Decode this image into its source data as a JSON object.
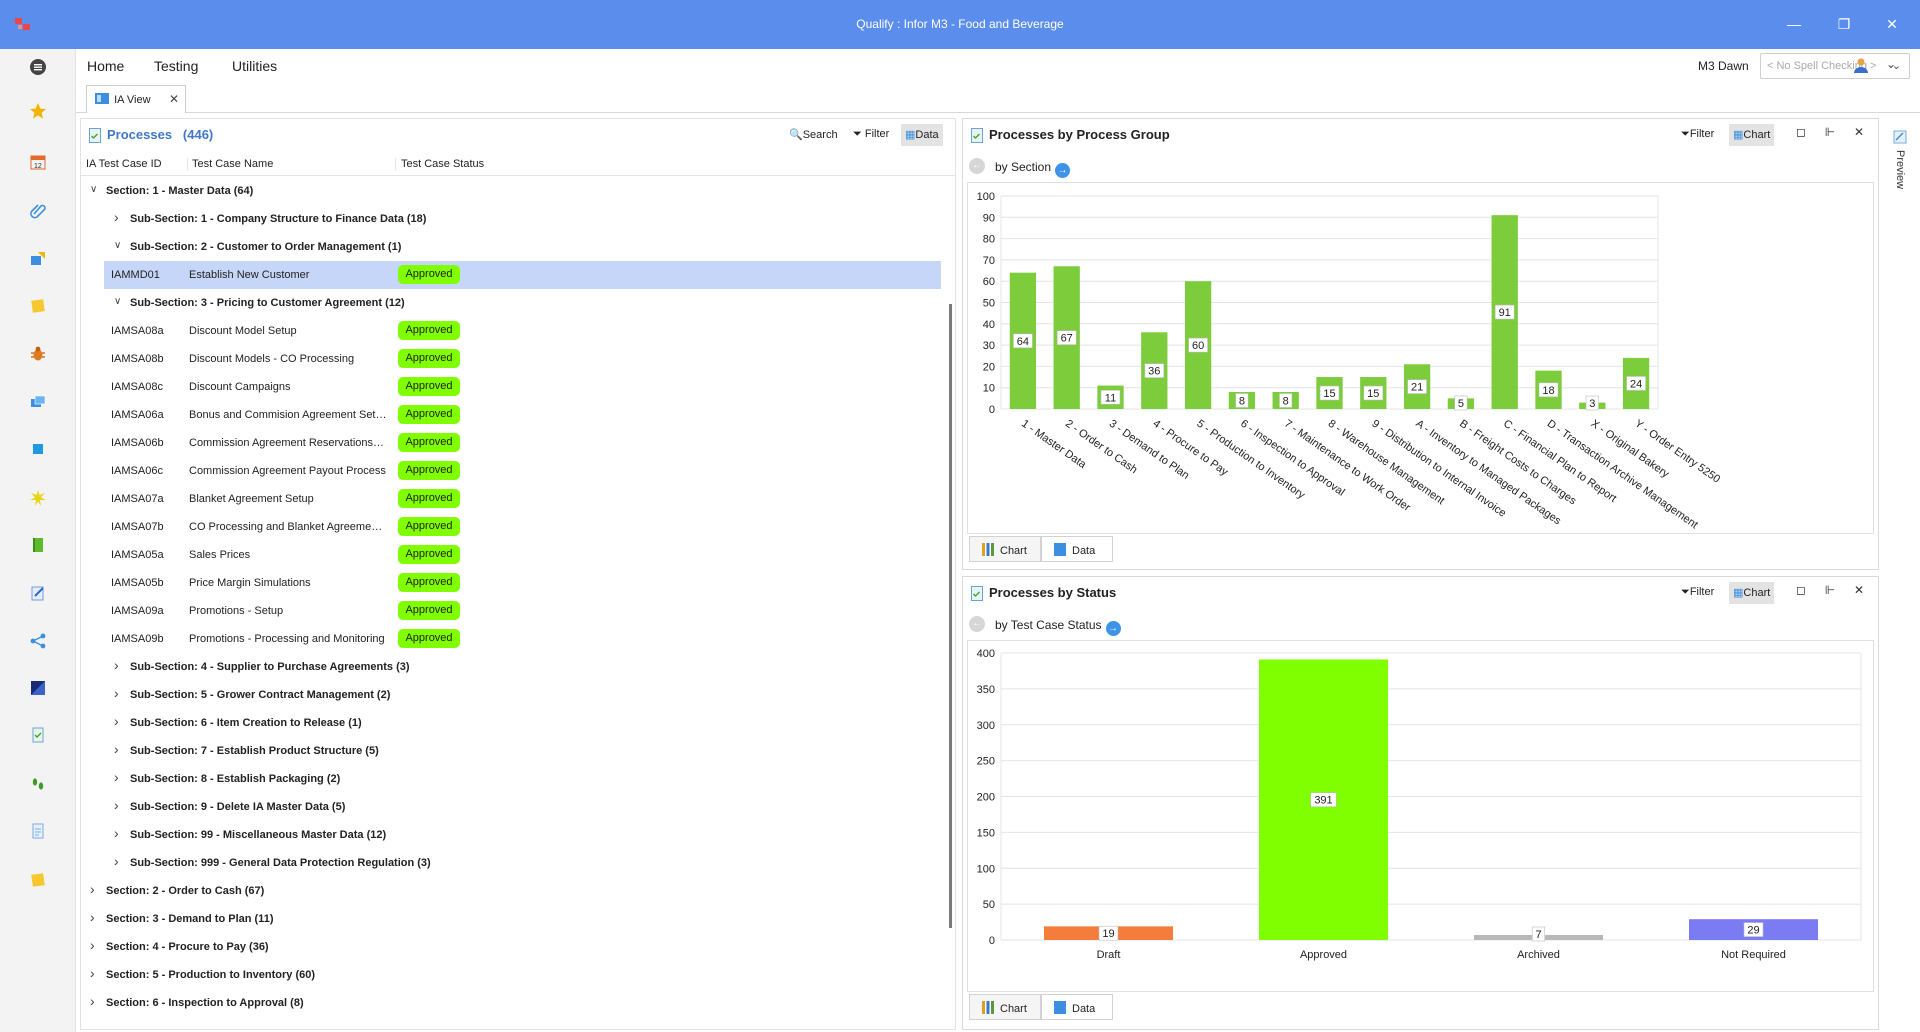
{
  "window": {
    "title": "Qualify : Infor M3 - Food and Beverage"
  },
  "menu": {
    "items": [
      "Home",
      "Testing",
      "Utilities"
    ],
    "user": "M3 Dawn",
    "spell_placeholder": "< No Spell Checking >"
  },
  "doc_tab": {
    "label": "IA View"
  },
  "processes": {
    "title": "Processes",
    "count": "(446)",
    "toolbar": {
      "search": "Search",
      "filter": "Filter",
      "data": "Data"
    },
    "columns": [
      "IA Test Case ID",
      "Test Case Name",
      "Test Case Status"
    ],
    "rows": [
      {
        "type": "section",
        "label": "Section: 1 - Master Data (64)",
        "expanded": true
      },
      {
        "type": "subsection",
        "label": "Sub-Section: 1 - Company Structure to Finance Data (18)",
        "expanded": false
      },
      {
        "type": "subsection",
        "label": "Sub-Section: 2 - Customer to Order Management (1)",
        "expanded": true
      },
      {
        "type": "item",
        "id": "IAMMD01",
        "name": "Establish New Customer",
        "status": "Approved",
        "selected": true
      },
      {
        "type": "subsection",
        "label": "Sub-Section: 3 - Pricing to Customer Agreement (12)",
        "expanded": true
      },
      {
        "type": "item",
        "id": "IAMSA08a",
        "name": "Discount Model Setup",
        "status": "Approved"
      },
      {
        "type": "item",
        "id": "IAMSA08b",
        "name": "Discount Models - CO Processing",
        "status": "Approved"
      },
      {
        "type": "item",
        "id": "IAMSA08c",
        "name": "Discount Campaigns",
        "status": "Approved"
      },
      {
        "type": "item",
        "id": "IAMSA06a",
        "name": "Bonus and Commision Agreement Set Up",
        "status": "Approved"
      },
      {
        "type": "item",
        "id": "IAMSA06b",
        "name": "Commission Agreement Reservations a...",
        "status": "Approved"
      },
      {
        "type": "item",
        "id": "IAMSA06c",
        "name": "Commission Agreement Payout Process",
        "status": "Approved"
      },
      {
        "type": "item",
        "id": "IAMSA07a",
        "name": "Blanket Agreement Setup",
        "status": "Approved"
      },
      {
        "type": "item",
        "id": "IAMSA07b",
        "name": "CO Processing and Blanket Agreement...",
        "status": "Approved"
      },
      {
        "type": "item",
        "id": "IAMSA05a",
        "name": "Sales Prices",
        "status": "Approved"
      },
      {
        "type": "item",
        "id": "IAMSA05b",
        "name": "Price Margin Simulations",
        "status": "Approved"
      },
      {
        "type": "item",
        "id": "IAMSA09a",
        "name": "Promotions - Setup",
        "status": "Approved"
      },
      {
        "type": "item",
        "id": "IAMSA09b",
        "name": "Promotions - Processing and Monitoring",
        "status": "Approved"
      },
      {
        "type": "subsection",
        "label": "Sub-Section: 4 - Supplier to Purchase Agreements (3)",
        "expanded": false
      },
      {
        "type": "subsection",
        "label": "Sub-Section: 5 - Grower Contract Management (2)",
        "expanded": false
      },
      {
        "type": "subsection",
        "label": "Sub-Section: 6 - Item Creation to Release (1)",
        "expanded": false
      },
      {
        "type": "subsection",
        "label": "Sub-Section: 7 - Establish Product Structure (5)",
        "expanded": false
      },
      {
        "type": "subsection",
        "label": "Sub-Section: 8 - Establish Packaging (2)",
        "expanded": false
      },
      {
        "type": "subsection",
        "label": "Sub-Section: 9 - Delete IA Master Data (5)",
        "expanded": false
      },
      {
        "type": "subsection",
        "label": "Sub-Section: 99 - Miscellaneous Master Data (12)",
        "expanded": false
      },
      {
        "type": "subsection",
        "label": "Sub-Section: 999 - General Data Protection Regulation (3)",
        "expanded": false
      },
      {
        "type": "section",
        "label": "Section: 2 - Order to Cash (67)",
        "expanded": false
      },
      {
        "type": "section",
        "label": "Section: 3 - Demand to Plan (11)",
        "expanded": false
      },
      {
        "type": "section",
        "label": "Section: 4 - Procure to Pay (36)",
        "expanded": false
      },
      {
        "type": "section",
        "label": "Section: 5 - Production to Inventory (60)",
        "expanded": false
      },
      {
        "type": "section",
        "label": "Section: 6 - Inspection to Approval (8)",
        "expanded": false
      }
    ]
  },
  "group_panel": {
    "title": "Processes by Process Group",
    "subheader": "by Section",
    "toolbar": {
      "filter": "Filter",
      "chart": "Chart"
    },
    "tabs": [
      "Chart",
      "Data"
    ]
  },
  "status_panel": {
    "title": "Processes by Status",
    "subheader": "by Test Case Status",
    "toolbar": {
      "filter": "Filter",
      "chart": "Chart"
    },
    "tabs": [
      "Chart",
      "Data"
    ]
  },
  "preview_label": "Preview",
  "colors": {
    "titlebar": "#5b8ded",
    "approved": "#7fff00",
    "bar_green": "#7ccc3c",
    "draft": "#f47c3c",
    "archived": "#b8b8b8",
    "not_required": "#7b7cf4"
  },
  "chart_data": [
    {
      "type": "bar",
      "categories": [
        "1 - Master Data",
        "2 - Order to Cash",
        "3 - Demand to Plan",
        "4 - Procure to Pay",
        "5 - Production to Inventory",
        "6 - Inspection to Approval",
        "7 - Maintenance to Work Order",
        "8 - Warehouse Management",
        "9 - Distribution to Internal Invoice",
        "A - Inventory to Managed Packages",
        "B - Freight Costs to Charges",
        "C - Financial Plan to Report",
        "D - Transaction Archive Management",
        "X - Original Bakery",
        "Y - Order Entry 5250"
      ],
      "values": [
        64,
        67,
        11,
        36,
        60,
        8,
        8,
        15,
        15,
        21,
        5,
        91,
        18,
        3,
        24
      ],
      "yticks": [
        0,
        10,
        20,
        30,
        40,
        50,
        60,
        70,
        80,
        90,
        100
      ],
      "ylim": [
        0,
        100
      ],
      "grid": true
    },
    {
      "type": "bar",
      "categories": [
        "Draft",
        "Approved",
        "Archived",
        "Not Required"
      ],
      "values": [
        19,
        391,
        7,
        29
      ],
      "colors": [
        "#f47c3c",
        "#7fff00",
        "#b8b8b8",
        "#7b7cf4"
      ],
      "yticks": [
        0,
        50,
        100,
        150,
        200,
        250,
        300,
        350,
        400
      ],
      "ylim": [
        0,
        400
      ],
      "grid": true
    }
  ]
}
